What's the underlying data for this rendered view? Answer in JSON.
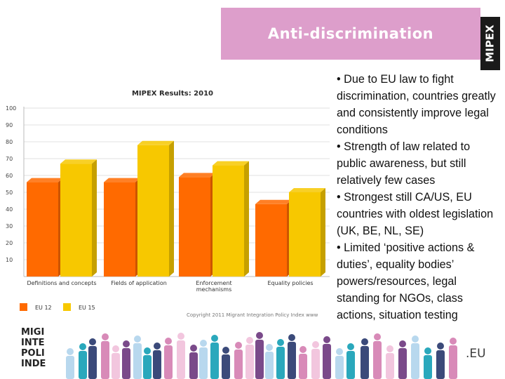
{
  "header": {
    "title": "Anti-discrimination",
    "logo_text": "MIPEX"
  },
  "chart_data": {
    "type": "bar",
    "title": "MIPEX Results: 2010",
    "categories": [
      "Definitions and concepts",
      "Fields of application",
      "Enforcement mechanisms",
      "Equality policies"
    ],
    "series": [
      {
        "name": "EU 12",
        "color": "#ff6a00",
        "values": [
          56,
          56,
          59,
          43
        ]
      },
      {
        "name": "EU 15",
        "color": "#f7c800",
        "values": [
          67,
          78,
          66,
          50
        ]
      }
    ],
    "yticks": [
      10,
      20,
      30,
      40,
      50,
      60,
      70,
      80,
      90,
      100
    ],
    "ylim": [
      0,
      100
    ],
    "xlabel": "",
    "ylabel": "",
    "copyright": "Copyright 2011 Migrant Integration Policy Index www",
    "legend_position": "bottom-left"
  },
  "bullets": [
    "• Due to EU law to fight discrimination, countries greatly and consistently improve legal conditions",
    "• Strength of law related to public awareness, but still relatively few cases",
    "• Strongest still CA/US, EU countries with oldest legislation (UK, BE, NL, SE)",
    "• Limited ‘positive actions & duties’, equality bodies’ powers/resources, legal standing for NGOs, class actions, situation testing"
  ],
  "footer": {
    "brand_lines": [
      "MIGI",
      "INTE",
      "POLI",
      "INDE"
    ],
    "eu_text": ".EU",
    "colors": [
      "#b8d8ee",
      "#2aa8bc",
      "#3b4a7a",
      "#d88ab8",
      "#f2c6de",
      "#7a4a8a"
    ]
  }
}
